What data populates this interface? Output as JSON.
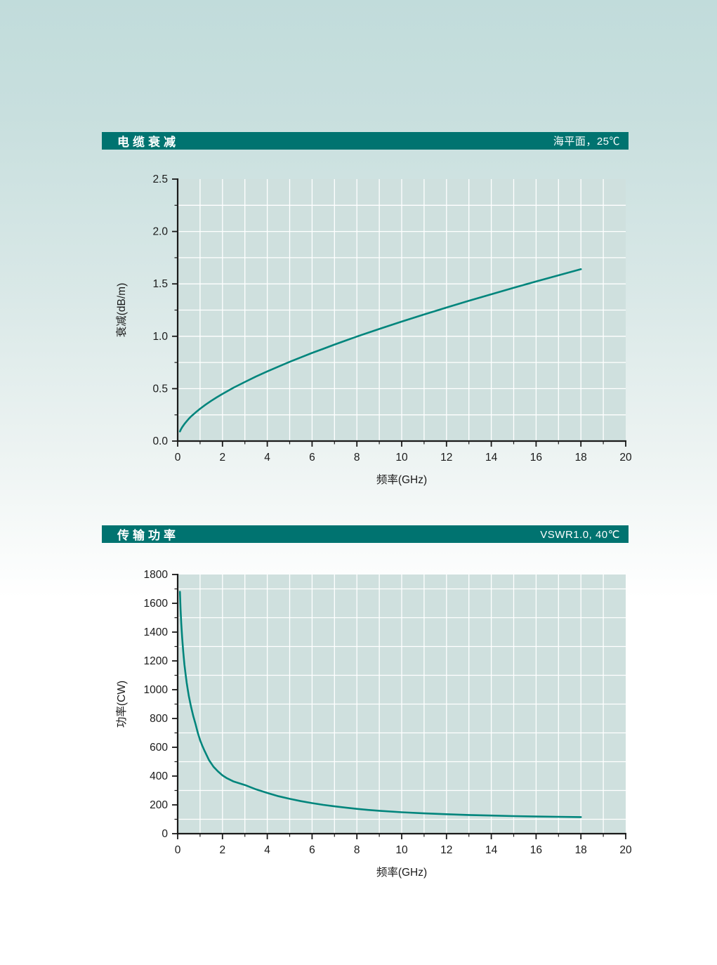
{
  "colors": {
    "header_bg": "#007370",
    "header_text": "#ffffff",
    "plot_bg": "#cfe0de",
    "grid": "#ffffff",
    "axis": "#1a1a1a",
    "tick_label": "#1a1a1a",
    "curve": "#00857c"
  },
  "sections": [
    {
      "title": "电缆衰减",
      "subtitle": "海平面，25℃"
    },
    {
      "title": "传输功率",
      "subtitle": "VSWR1.0, 40℃"
    }
  ],
  "chart_data": [
    {
      "type": "line",
      "title": "电缆衰减",
      "condition": "海平面，25℃",
      "xlabel": "频率(GHz)",
      "ylabel": "衰减(dB/m)",
      "xlim": [
        0,
        20
      ],
      "ylim": [
        0,
        2.5
      ],
      "x_major_step": 2,
      "x_minor_step": 1,
      "y_major_step": 0.5,
      "y_minor_step": 0.25,
      "grid_x_step": 1,
      "grid_y_step": 0.25,
      "grid_y_offset": 0.25,
      "legend": "none",
      "grid": "on",
      "x_tick_labels": [
        "0",
        "2",
        "4",
        "6",
        "8",
        "10",
        "12",
        "14",
        "16",
        "18",
        "20"
      ],
      "y_tick_labels": [
        "0.0",
        "0.5",
        "1.0",
        "1.5",
        "2.0",
        "2.5"
      ],
      "series": [
        {
          "name": "衰减",
          "points": [
            [
              0.1,
              0.092
            ],
            [
              0.15,
              0.114
            ],
            [
              0.2,
              0.132
            ],
            [
              0.3,
              0.163
            ],
            [
              0.4,
              0.189
            ],
            [
              0.5,
              0.213
            ],
            [
              0.6,
              0.235
            ],
            [
              0.8,
              0.273
            ],
            [
              1,
              0.308
            ],
            [
              1.25,
              0.348
            ],
            [
              1.5,
              0.384
            ],
            [
              1.75,
              0.418
            ],
            [
              2,
              0.45
            ],
            [
              2.5,
              0.51
            ],
            [
              3,
              0.564
            ],
            [
              3.5,
              0.616
            ],
            [
              4,
              0.665
            ],
            [
              4.5,
              0.711
            ],
            [
              5,
              0.756
            ],
            [
              5.5,
              0.799
            ],
            [
              6,
              0.841
            ],
            [
              6.5,
              0.881
            ],
            [
              7,
              0.921
            ],
            [
              7.5,
              0.959
            ],
            [
              8,
              0.997
            ],
            [
              9,
              1.07
            ],
            [
              10,
              1.14
            ],
            [
              11,
              1.208
            ],
            [
              12,
              1.274
            ],
            [
              13,
              1.339
            ],
            [
              14,
              1.401
            ],
            [
              15,
              1.463
            ],
            [
              16,
              1.523
            ],
            [
              17,
              1.582
            ],
            [
              18,
              1.64
            ]
          ]
        }
      ]
    },
    {
      "type": "line",
      "title": "传输功率",
      "condition": "VSWR1.0, 40℃",
      "xlabel": "频率(GHz)",
      "ylabel": "功率(CW)",
      "xlim": [
        0,
        20
      ],
      "ylim": [
        0,
        1800
      ],
      "x_major_step": 2,
      "x_minor_step": 1,
      "y_major_step": 200,
      "y_minor_step": 100,
      "grid_x_step": 1,
      "grid_y_step": 200,
      "grid_y_offset": 100,
      "legend": "none",
      "grid": "on",
      "x_tick_labels": [
        "0",
        "2",
        "4",
        "6",
        "8",
        "10",
        "12",
        "14",
        "16",
        "18",
        "20"
      ],
      "y_tick_labels": [
        "0",
        "200",
        "400",
        "600",
        "800",
        "1000",
        "1200",
        "1400",
        "1600",
        "1800"
      ],
      "series": [
        {
          "name": "功率",
          "points": [
            [
              0.1,
              1680
            ],
            [
              0.13,
              1560
            ],
            [
              0.16,
              1460
            ],
            [
              0.2,
              1360
            ],
            [
              0.25,
              1260
            ],
            [
              0.3,
              1175
            ],
            [
              0.35,
              1110
            ],
            [
              0.4,
              1050
            ],
            [
              0.45,
              1000
            ],
            [
              0.5,
              955
            ],
            [
              0.6,
              880
            ],
            [
              0.7,
              815
            ],
            [
              0.8,
              760
            ],
            [
              0.9,
              700
            ],
            [
              1,
              650
            ],
            [
              1.1,
              610
            ],
            [
              1.2,
              575
            ],
            [
              1.4,
              510
            ],
            [
              1.6,
              465
            ],
            [
              1.8,
              432
            ],
            [
              2,
              405
            ],
            [
              2.2,
              385
            ],
            [
              2.5,
              362
            ],
            [
              2.8,
              348
            ],
            [
              3,
              338
            ],
            [
              3.5,
              308
            ],
            [
              4,
              283
            ],
            [
              4.5,
              260
            ],
            [
              5,
              242
            ],
            [
              5.5,
              226
            ],
            [
              6,
              212
            ],
            [
              6.5,
              200
            ],
            [
              7,
              190
            ],
            [
              7.5,
              181
            ],
            [
              8,
              172
            ],
            [
              8.5,
              165
            ],
            [
              9,
              159
            ],
            [
              10,
              149
            ],
            [
              11,
              141
            ],
            [
              12,
              135
            ],
            [
              13,
              130
            ],
            [
              14,
              126
            ],
            [
              15,
              122
            ],
            [
              16,
              119
            ],
            [
              17,
              117
            ],
            [
              18,
              115
            ]
          ]
        }
      ]
    }
  ]
}
